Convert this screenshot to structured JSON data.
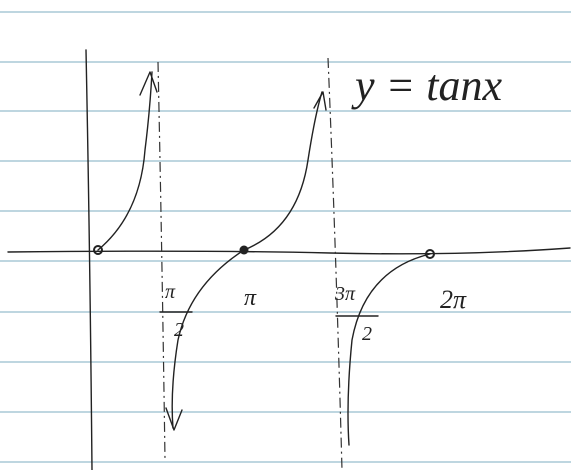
{
  "title": "y = tanx",
  "labels": {
    "half_pi": {
      "num": "π",
      "den": "2"
    },
    "pi": "π",
    "three_half_pi": {
      "num": "3π",
      "den": "2"
    },
    "two_pi": "2π"
  }
}
